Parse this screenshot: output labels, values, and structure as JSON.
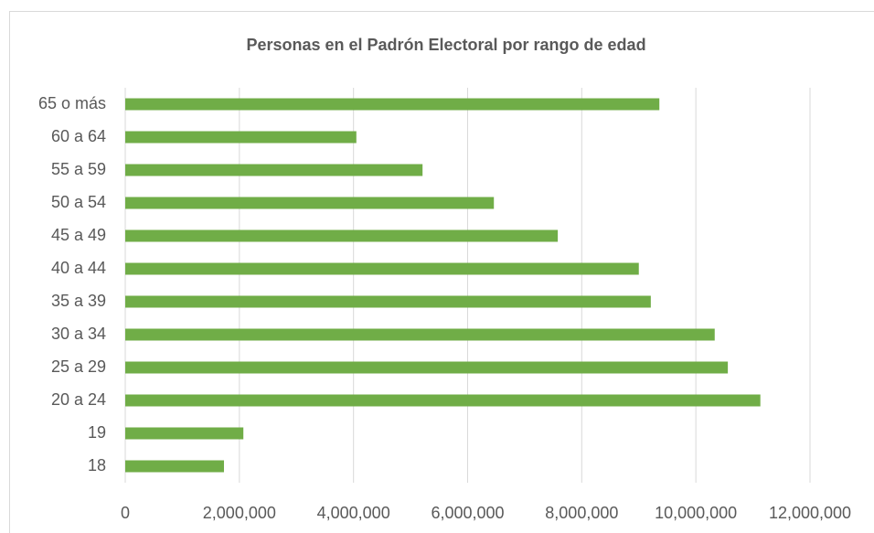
{
  "chart_data": {
    "type": "barh",
    "title": "Personas en el Padrón Electoral por rango de edad",
    "categories": [
      "18",
      "19",
      "20 a 24",
      "25 a 29",
      "30 a 34",
      "35 a 39",
      "40 a 44",
      "45 a 49",
      "50 a 54",
      "55 a 59",
      "60 a 64",
      "65 o más"
    ],
    "values": [
      1730000,
      2070000,
      11130000,
      10560000,
      10330000,
      9210000,
      9000000,
      7580000,
      6460000,
      5210000,
      4050000,
      9360000
    ],
    "color": "#70ad47",
    "xlim": [
      0,
      12000000
    ],
    "xticks": [
      0,
      {
        "value": 2000000,
        "label": "2,000,000"
      },
      {
        "value": 4000000,
        "label": "4,000,000"
      },
      {
        "value": 6000000,
        "label": "6,000,000"
      },
      {
        "value": 8000000,
        "label": "8,000,000"
      },
      {
        "value": 10000000,
        "label": "10,000,000"
      },
      {
        "value": 12000000,
        "label": "12,000,000"
      }
    ],
    "grid": true
  }
}
